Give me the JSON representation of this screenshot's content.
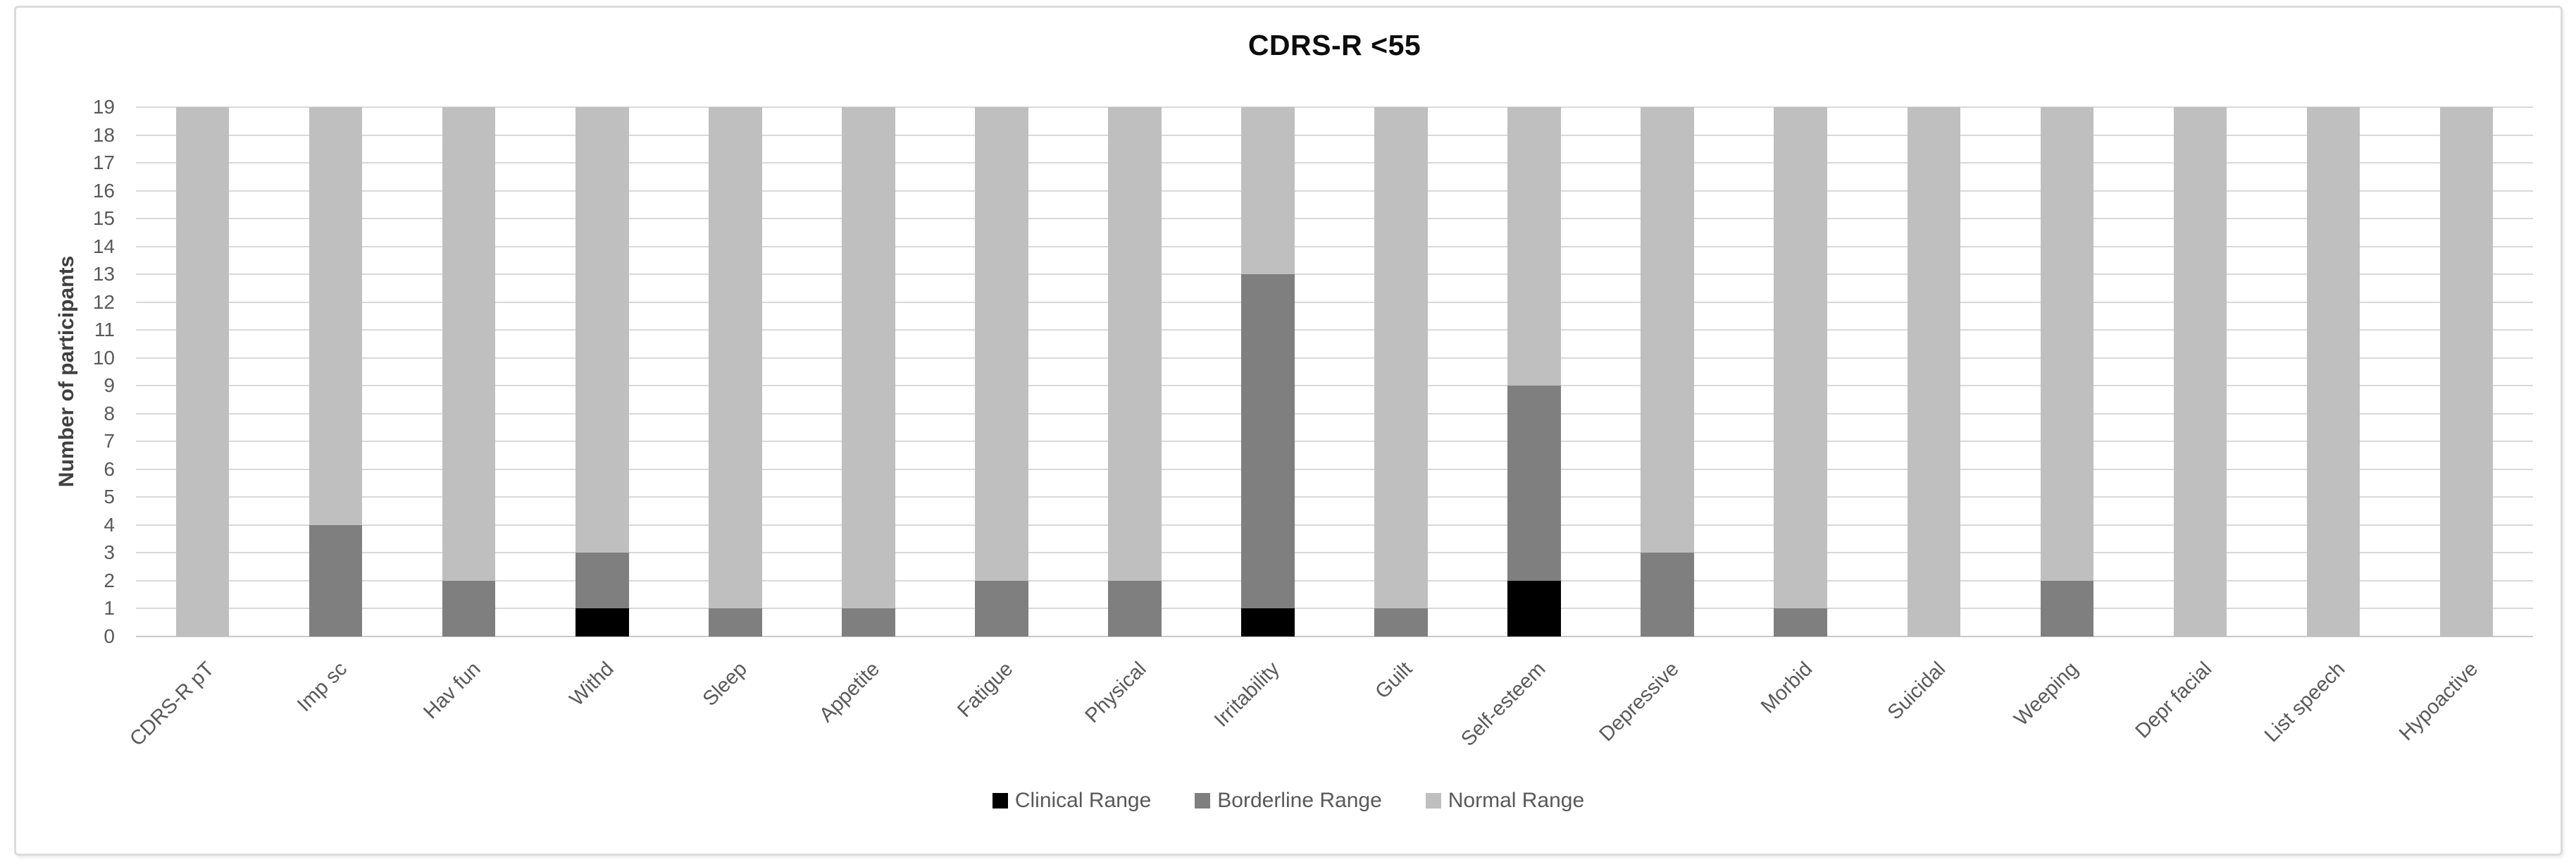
{
  "chart_data": {
    "type": "bar",
    "stacked": true,
    "title": "CDRS-R <55",
    "xlabel": "",
    "ylabel": "Number of participants",
    "ylim": [
      0,
      19
    ],
    "ytick_step": 1,
    "grid": true,
    "legend_position": "bottom",
    "categories": [
      "CDRS-R pT",
      "Imp sc",
      "Hav fun",
      "Withd",
      "Sleep",
      "Appetite",
      "Fatigue",
      "Physical",
      "Irritability",
      "Guilt",
      "Self-esteem",
      "Depressive",
      "Morbid",
      "Suicidal",
      "Weeping",
      "Depr facial",
      "List speech",
      "Hypoactive"
    ],
    "series": [
      {
        "name": "Clinical Range",
        "color": "#000000",
        "values": [
          0,
          0,
          0,
          1,
          0,
          0,
          0,
          0,
          1,
          0,
          2,
          0,
          0,
          0,
          0,
          0,
          0,
          0
        ]
      },
      {
        "name": "Borderline Range",
        "color": "#7f7f7f",
        "values": [
          0,
          4,
          2,
          2,
          1,
          1,
          2,
          2,
          12,
          1,
          7,
          3,
          1,
          0,
          2,
          0,
          0,
          0
        ]
      },
      {
        "name": "Normal Range",
        "color": "#bfbfbf",
        "values": [
          19,
          15,
          17,
          16,
          18,
          18,
          17,
          17,
          6,
          18,
          10,
          16,
          18,
          19,
          17,
          19,
          19,
          19
        ]
      }
    ],
    "colors": {
      "gridline": "#d9d9d9",
      "axis_text": "#595959",
      "title_text": "#0d0d0d"
    }
  }
}
